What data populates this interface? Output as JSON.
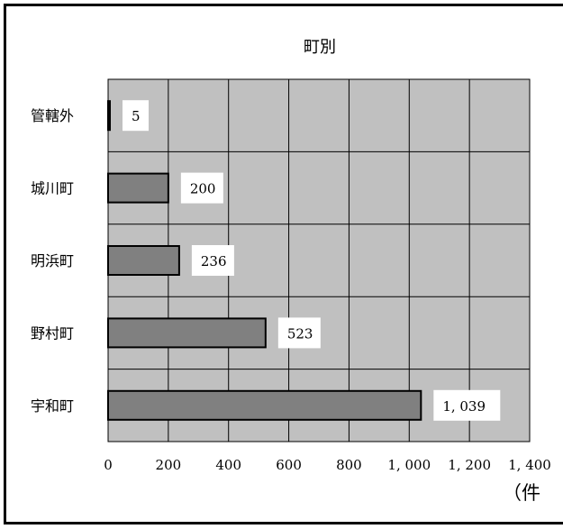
{
  "chart_data": {
    "type": "bar",
    "orientation": "horizontal",
    "title": "町別",
    "categories": [
      "管轄外",
      "城川町",
      "明浜町",
      "野村町",
      "宇和町"
    ],
    "values": [
      5,
      200,
      236,
      523,
      1039
    ],
    "data_labels": [
      "5",
      "200",
      "236",
      "523",
      "1, 039"
    ],
    "xlim": [
      0,
      1400
    ],
    "x_ticks": [
      0,
      200,
      400,
      600,
      800,
      1000,
      1200,
      1400
    ],
    "x_tick_labels": [
      "0",
      "200",
      "400",
      "600",
      "800",
      "1, 000",
      "1, 200",
      "1, 400"
    ],
    "unit_label": "（件",
    "grid": true,
    "colors": {
      "plot_bg": "#c0c0c0",
      "bar": "#808080",
      "gridline": "#000000",
      "label_bg": "#ffffff"
    }
  }
}
